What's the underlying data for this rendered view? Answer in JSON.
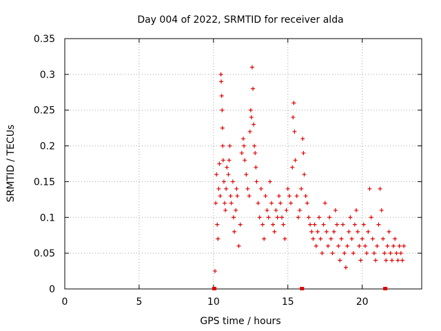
{
  "chart_data": {
    "type": "scatter",
    "title": "Day 004 of 2022, SRMTID for receiver alda",
    "xlabel": "GPS time / hours",
    "ylabel": "SRMTID / TECUs",
    "xlim": [
      0,
      24
    ],
    "ylim": [
      0,
      0.35
    ],
    "xticks": [
      0,
      5,
      10,
      15,
      20
    ],
    "yticks": [
      0,
      0.05,
      0.1,
      0.15,
      0.2,
      0.25,
      0.3,
      0.35
    ],
    "grid": true,
    "series": [
      {
        "name": "SRMTID",
        "color": "#e00000",
        "marker": "+",
        "points": [
          [
            10.1,
            0.025
          ],
          [
            10.15,
            0.12
          ],
          [
            10.2,
            0.16
          ],
          [
            10.25,
            0.09
          ],
          [
            10.3,
            0.07
          ],
          [
            10.35,
            0.14
          ],
          [
            10.4,
            0.175
          ],
          [
            10.45,
            0.13
          ],
          [
            10.5,
            0.3
          ],
          [
            10.52,
            0.29
          ],
          [
            10.55,
            0.27
          ],
          [
            10.58,
            0.25
          ],
          [
            10.6,
            0.225
          ],
          [
            10.62,
            0.2
          ],
          [
            10.65,
            0.18
          ],
          [
            10.7,
            0.15
          ],
          [
            10.75,
            0.12
          ],
          [
            10.8,
            0.11
          ],
          [
            10.85,
            0.14
          ],
          [
            10.9,
            0.17
          ],
          [
            11.0,
            0.16
          ],
          [
            11.05,
            0.18
          ],
          [
            11.1,
            0.2
          ],
          [
            11.15,
            0.13
          ],
          [
            11.2,
            0.12
          ],
          [
            11.3,
            0.15
          ],
          [
            11.35,
            0.1
          ],
          [
            11.4,
            0.08
          ],
          [
            11.5,
            0.11
          ],
          [
            11.55,
            0.14
          ],
          [
            11.6,
            0.13
          ],
          [
            11.7,
            0.06
          ],
          [
            11.8,
            0.09
          ],
          [
            11.9,
            0.19
          ],
          [
            12.0,
            0.21
          ],
          [
            12.05,
            0.2
          ],
          [
            12.1,
            0.18
          ],
          [
            12.2,
            0.16
          ],
          [
            12.3,
            0.14
          ],
          [
            12.4,
            0.13
          ],
          [
            12.45,
            0.22
          ],
          [
            12.5,
            0.25
          ],
          [
            12.55,
            0.24
          ],
          [
            12.6,
            0.31
          ],
          [
            12.65,
            0.28
          ],
          [
            12.7,
            0.23
          ],
          [
            12.75,
            0.2
          ],
          [
            12.8,
            0.19
          ],
          [
            12.85,
            0.17
          ],
          [
            12.9,
            0.15
          ],
          [
            13.0,
            0.12
          ],
          [
            13.1,
            0.1
          ],
          [
            13.2,
            0.14
          ],
          [
            13.3,
            0.09
          ],
          [
            13.4,
            0.07
          ],
          [
            13.5,
            0.13
          ],
          [
            13.6,
            0.11
          ],
          [
            13.7,
            0.1
          ],
          [
            13.8,
            0.15
          ],
          [
            13.9,
            0.12
          ],
          [
            14.0,
            0.09
          ],
          [
            14.1,
            0.08
          ],
          [
            14.2,
            0.11
          ],
          [
            14.3,
            0.1
          ],
          [
            14.4,
            0.13
          ],
          [
            14.5,
            0.12
          ],
          [
            14.6,
            0.1
          ],
          [
            14.7,
            0.09
          ],
          [
            14.8,
            0.07
          ],
          [
            14.9,
            0.11
          ],
          [
            15.0,
            0.14
          ],
          [
            15.1,
            0.13
          ],
          [
            15.2,
            0.12
          ],
          [
            15.3,
            0.17
          ],
          [
            15.35,
            0.24
          ],
          [
            15.4,
            0.26
          ],
          [
            15.45,
            0.22
          ],
          [
            15.5,
            0.18
          ],
          [
            15.6,
            0.13
          ],
          [
            15.7,
            0.1
          ],
          [
            15.8,
            0.11
          ],
          [
            15.9,
            0.14
          ],
          [
            16.0,
            0.21
          ],
          [
            16.05,
            0.19
          ],
          [
            16.1,
            0.16
          ],
          [
            16.2,
            0.13
          ],
          [
            16.3,
            0.12
          ],
          [
            16.4,
            0.1
          ],
          [
            16.5,
            0.09
          ],
          [
            16.6,
            0.08
          ],
          [
            16.7,
            0.07
          ],
          [
            16.8,
            0.09
          ],
          [
            16.9,
            0.06
          ],
          [
            17.0,
            0.08
          ],
          [
            17.1,
            0.1
          ],
          [
            17.2,
            0.07
          ],
          [
            17.3,
            0.05
          ],
          [
            17.4,
            0.09
          ],
          [
            17.5,
            0.12
          ],
          [
            17.6,
            0.08
          ],
          [
            17.7,
            0.06
          ],
          [
            17.8,
            0.1
          ],
          [
            17.9,
            0.07
          ],
          [
            18.0,
            0.05
          ],
          [
            18.1,
            0.08
          ],
          [
            18.2,
            0.11
          ],
          [
            18.3,
            0.09
          ],
          [
            18.4,
            0.06
          ],
          [
            18.5,
            0.04
          ],
          [
            18.6,
            0.07
          ],
          [
            18.7,
            0.09
          ],
          [
            18.8,
            0.05
          ],
          [
            18.9,
            0.03
          ],
          [
            19.0,
            0.06
          ],
          [
            19.1,
            0.08
          ],
          [
            19.2,
            0.1
          ],
          [
            19.3,
            0.07
          ],
          [
            19.4,
            0.05
          ],
          [
            19.5,
            0.09
          ],
          [
            19.6,
            0.11
          ],
          [
            19.7,
            0.08
          ],
          [
            19.8,
            0.06
          ],
          [
            19.9,
            0.04
          ],
          [
            20.0,
            0.07
          ],
          [
            20.1,
            0.09
          ],
          [
            20.2,
            0.06
          ],
          [
            20.3,
            0.05
          ],
          [
            20.4,
            0.08
          ],
          [
            20.5,
            0.14
          ],
          [
            20.6,
            0.1
          ],
          [
            20.7,
            0.07
          ],
          [
            20.8,
            0.05
          ],
          [
            20.9,
            0.04
          ],
          [
            21.0,
            0.06
          ],
          [
            21.1,
            0.09
          ],
          [
            21.2,
            0.14
          ],
          [
            21.3,
            0.11
          ],
          [
            21.4,
            0.07
          ],
          [
            21.5,
            0.05
          ],
          [
            21.6,
            0.04
          ],
          [
            21.7,
            0.06
          ],
          [
            21.8,
            0.08
          ],
          [
            21.9,
            0.05
          ],
          [
            22.0,
            0.04
          ],
          [
            22.1,
            0.06
          ],
          [
            22.2,
            0.07
          ],
          [
            22.3,
            0.05
          ],
          [
            22.4,
            0.04
          ],
          [
            22.5,
            0.06
          ],
          [
            22.6,
            0.05
          ],
          [
            22.7,
            0.04
          ],
          [
            22.8,
            0.06
          ]
        ]
      }
    ],
    "axis_markers": [
      10.05,
      15.95,
      21.55
    ]
  }
}
